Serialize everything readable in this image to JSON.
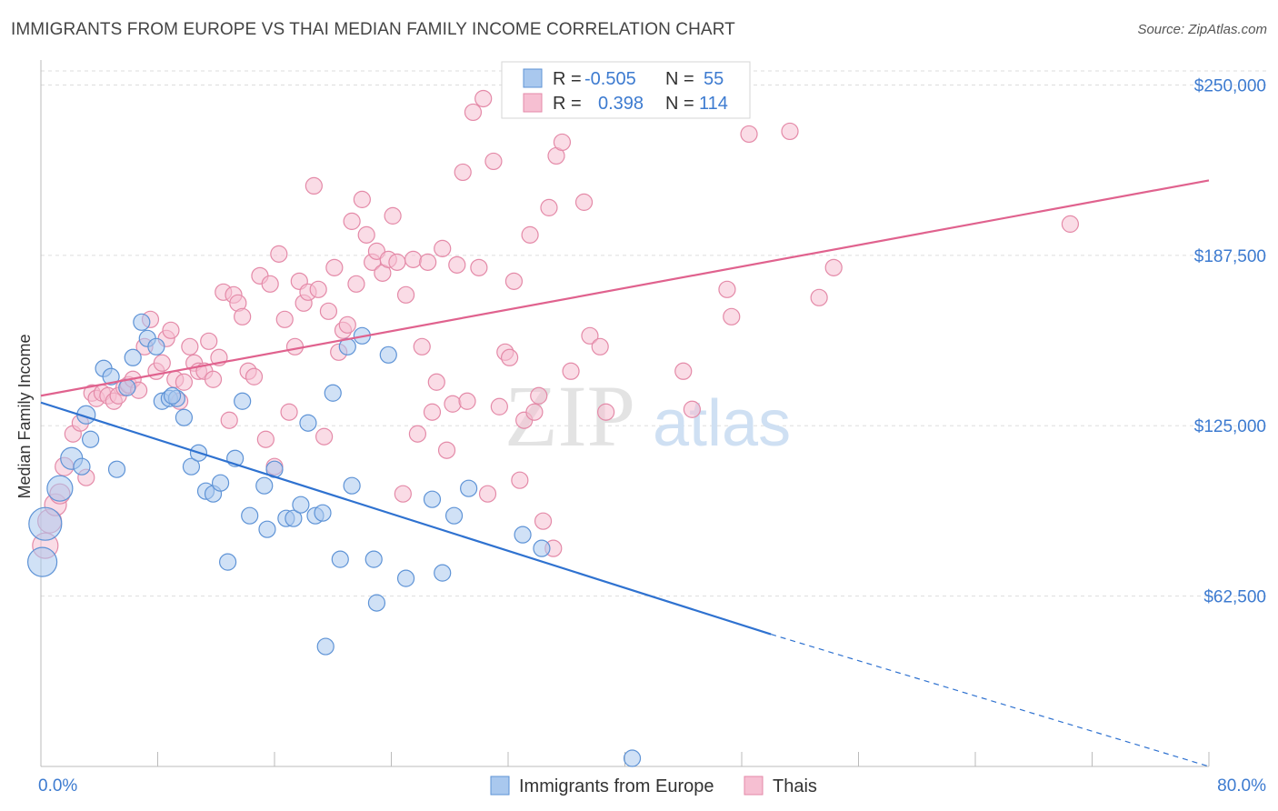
{
  "title": "IMMIGRANTS FROM EUROPE VS THAI MEDIAN FAMILY INCOME CORRELATION CHART",
  "source": "Source: ZipAtlas.com",
  "watermark": {
    "zip": "ZIP",
    "atlas": "atlas"
  },
  "colors": {
    "blue_fill": "#a9c8ee",
    "blue_stroke": "#5e93d6",
    "blue_line": "#2f72d0",
    "pink_fill": "#f6bfd2",
    "pink_stroke": "#e48aa8",
    "pink_line": "#e0628e",
    "tick_text": "#3d7bd0",
    "grid": "#dddddd"
  },
  "legend": {
    "rows": [
      {
        "r_label": "R =",
        "r_value": "-0.505",
        "n_label": "N =",
        "n_value": "55"
      },
      {
        "r_label": "R =",
        "r_value": "0.398",
        "n_label": "N =",
        "n_value": "114"
      }
    ]
  },
  "bottom_legend": [
    "Immigrants from Europe",
    "Thais"
  ],
  "chart_data": {
    "type": "scatter",
    "title": "IMMIGRANTS FROM EUROPE VS THAI MEDIAN FAMILY INCOME CORRELATION CHART",
    "xlabel": "",
    "ylabel": "Median Family Income",
    "xlim": [
      0,
      80
    ],
    "ylim": [
      0,
      262500
    ],
    "x_tick_labels": [
      "0.0%",
      "80.0%"
    ],
    "y_ticks": [
      62500,
      125000,
      187500,
      250000
    ],
    "y_tick_labels": [
      "$62,500",
      "$125,000",
      "$187,500",
      "$250,000"
    ],
    "grid": true,
    "legend_placement": "top-center",
    "series": [
      {
        "name": "Immigrants from Europe",
        "r": -0.505,
        "n": 55,
        "trend": {
          "x1": 0,
          "y1": 133500,
          "x2": 50,
          "y2": 48500,
          "dashed_to_x": 80,
          "dashed_to_y": 0
        },
        "points": [
          [
            0.1,
            75000,
            16
          ],
          [
            0.3,
            89000,
            18
          ],
          [
            1.3,
            102000,
            14
          ],
          [
            2.1,
            113000,
            12
          ],
          [
            3.1,
            129000,
            10
          ],
          [
            2.8,
            110000,
            9
          ],
          [
            3.4,
            120000,
            9
          ],
          [
            4.3,
            146000,
            9
          ],
          [
            4.8,
            143000,
            9
          ],
          [
            5.2,
            109000,
            9
          ],
          [
            5.9,
            139000,
            9
          ],
          [
            6.3,
            150000,
            9
          ],
          [
            6.9,
            163000,
            9
          ],
          [
            7.3,
            157000,
            9
          ],
          [
            7.9,
            154000,
            9
          ],
          [
            8.3,
            134000,
            9
          ],
          [
            8.8,
            135000,
            9
          ],
          [
            9.3,
            135000,
            9
          ],
          [
            9.8,
            128000,
            9
          ],
          [
            10.3,
            110000,
            9
          ],
          [
            10.8,
            115000,
            9
          ],
          [
            11.3,
            101000,
            9
          ],
          [
            11.8,
            100000,
            9
          ],
          [
            12.3,
            104000,
            9
          ],
          [
            12.8,
            75000,
            9
          ],
          [
            13.3,
            113000,
            9
          ],
          [
            13.8,
            134000,
            9
          ],
          [
            14.3,
            92000,
            9
          ],
          [
            15.3,
            103000,
            9
          ],
          [
            15.5,
            87000,
            9
          ],
          [
            16.0,
            109000,
            9
          ],
          [
            16.8,
            91000,
            9
          ],
          [
            17.3,
            91000,
            9
          ],
          [
            17.8,
            96000,
            9
          ],
          [
            18.3,
            126000,
            9
          ],
          [
            18.8,
            92000,
            9
          ],
          [
            19.3,
            93000,
            9
          ],
          [
            19.5,
            44000,
            9
          ],
          [
            20.0,
            137000,
            9
          ],
          [
            20.5,
            76000,
            9
          ],
          [
            21.0,
            154000,
            9
          ],
          [
            21.3,
            103000,
            9
          ],
          [
            22.0,
            158000,
            9
          ],
          [
            22.8,
            76000,
            9
          ],
          [
            23.0,
            60000,
            9
          ],
          [
            23.8,
            151000,
            9
          ],
          [
            25.0,
            69000,
            9
          ],
          [
            26.8,
            98000,
            9
          ],
          [
            27.5,
            71000,
            9
          ],
          [
            28.3,
            92000,
            9
          ],
          [
            29.3,
            102000,
            9
          ],
          [
            33.0,
            85000,
            9
          ],
          [
            34.3,
            80000,
            9
          ],
          [
            40.5,
            3000,
            9
          ],
          [
            9.0,
            136000,
            9
          ]
        ]
      },
      {
        "name": "Thais",
        "r": 0.398,
        "n": 114,
        "trend": {
          "x1": 0,
          "y1": 136000,
          "x2": 80,
          "y2": 215000
        },
        "points": [
          [
            0.3,
            81000,
            14
          ],
          [
            0.6,
            90000,
            13
          ],
          [
            1.0,
            96000,
            12
          ],
          [
            1.3,
            100000,
            11
          ],
          [
            1.6,
            110000,
            10
          ],
          [
            2.2,
            122000,
            9
          ],
          [
            2.7,
            126000,
            9
          ],
          [
            3.1,
            106000,
            9
          ],
          [
            3.5,
            137000,
            9
          ],
          [
            3.8,
            135000,
            9
          ],
          [
            4.2,
            137000,
            9
          ],
          [
            4.6,
            136000,
            9
          ],
          [
            5.0,
            134000,
            9
          ],
          [
            5.3,
            136000,
            9
          ],
          [
            5.7,
            139000,
            9
          ],
          [
            6.0,
            140000,
            9
          ],
          [
            6.3,
            142000,
            9
          ],
          [
            6.7,
            138000,
            9
          ],
          [
            7.1,
            154000,
            9
          ],
          [
            7.5,
            164000,
            9
          ],
          [
            7.9,
            145000,
            9
          ],
          [
            8.3,
            148000,
            9
          ],
          [
            8.6,
            157000,
            9
          ],
          [
            8.9,
            160000,
            9
          ],
          [
            9.2,
            142000,
            9
          ],
          [
            9.5,
            134000,
            9
          ],
          [
            9.8,
            141000,
            9
          ],
          [
            10.2,
            154000,
            9
          ],
          [
            10.5,
            148000,
            9
          ],
          [
            10.8,
            145000,
            9
          ],
          [
            11.2,
            145000,
            9
          ],
          [
            11.5,
            156000,
            9
          ],
          [
            11.8,
            142000,
            9
          ],
          [
            12.2,
            150000,
            9
          ],
          [
            12.5,
            174000,
            9
          ],
          [
            12.9,
            127000,
            9
          ],
          [
            13.2,
            173000,
            9
          ],
          [
            13.5,
            170000,
            9
          ],
          [
            13.8,
            165000,
            9
          ],
          [
            14.2,
            145000,
            9
          ],
          [
            14.6,
            143000,
            9
          ],
          [
            15.0,
            180000,
            9
          ],
          [
            15.4,
            120000,
            9
          ],
          [
            15.7,
            177000,
            9
          ],
          [
            16.0,
            110000,
            9
          ],
          [
            16.3,
            188000,
            9
          ],
          [
            16.7,
            164000,
            9
          ],
          [
            17.0,
            130000,
            9
          ],
          [
            17.4,
            154000,
            9
          ],
          [
            17.7,
            178000,
            9
          ],
          [
            18.0,
            170000,
            9
          ],
          [
            18.3,
            174000,
            9
          ],
          [
            18.7,
            213000,
            9
          ],
          [
            19.0,
            175000,
            9
          ],
          [
            19.4,
            121000,
            9
          ],
          [
            19.7,
            167000,
            9
          ],
          [
            20.1,
            183000,
            9
          ],
          [
            20.4,
            152000,
            9
          ],
          [
            20.7,
            160000,
            9
          ],
          [
            21.0,
            162000,
            9
          ],
          [
            21.3,
            200000,
            9
          ],
          [
            21.6,
            177000,
            9
          ],
          [
            22.0,
            208000,
            9
          ],
          [
            22.3,
            195000,
            9
          ],
          [
            22.7,
            185000,
            9
          ],
          [
            23.0,
            189000,
            9
          ],
          [
            23.4,
            181000,
            9
          ],
          [
            23.8,
            186000,
            9
          ],
          [
            24.1,
            202000,
            9
          ],
          [
            24.4,
            185000,
            9
          ],
          [
            24.8,
            100000,
            9
          ],
          [
            25.0,
            173000,
            9
          ],
          [
            25.5,
            186000,
            9
          ],
          [
            25.8,
            122000,
            9
          ],
          [
            26.1,
            154000,
            9
          ],
          [
            26.5,
            185000,
            9
          ],
          [
            26.8,
            130000,
            9
          ],
          [
            27.1,
            141000,
            9
          ],
          [
            27.5,
            190000,
            9
          ],
          [
            27.8,
            116000,
            9
          ],
          [
            28.2,
            133000,
            9
          ],
          [
            28.5,
            184000,
            9
          ],
          [
            28.9,
            218000,
            9
          ],
          [
            29.2,
            134000,
            9
          ],
          [
            29.6,
            240000,
            9
          ],
          [
            30.0,
            183000,
            9
          ],
          [
            30.3,
            245000,
            9
          ],
          [
            30.6,
            100000,
            9
          ],
          [
            31.0,
            222000,
            9
          ],
          [
            31.4,
            132000,
            9
          ],
          [
            31.8,
            152000,
            9
          ],
          [
            32.1,
            150000,
            9
          ],
          [
            32.4,
            178000,
            9
          ],
          [
            32.8,
            105000,
            9
          ],
          [
            33.1,
            127000,
            9
          ],
          [
            33.5,
            195000,
            9
          ],
          [
            33.8,
            130000,
            9
          ],
          [
            34.1,
            136000,
            9
          ],
          [
            34.4,
            90000,
            9
          ],
          [
            34.8,
            205000,
            9
          ],
          [
            35.1,
            80000,
            9
          ],
          [
            35.3,
            224000,
            9
          ],
          [
            35.7,
            229000,
            9
          ],
          [
            36.3,
            145000,
            9
          ],
          [
            37.2,
            207000,
            9
          ],
          [
            37.6,
            158000,
            9
          ],
          [
            38.3,
            154000,
            9
          ],
          [
            38.7,
            130000,
            9
          ],
          [
            44.0,
            145000,
            9
          ],
          [
            44.6,
            131000,
            9
          ],
          [
            47.0,
            175000,
            9
          ],
          [
            47.3,
            165000,
            9
          ],
          [
            48.5,
            232000,
            9
          ],
          [
            51.3,
            233000,
            9
          ],
          [
            53.3,
            172000,
            9
          ],
          [
            54.3,
            183000,
            9
          ],
          [
            70.5,
            199000,
            9
          ]
        ]
      }
    ]
  }
}
